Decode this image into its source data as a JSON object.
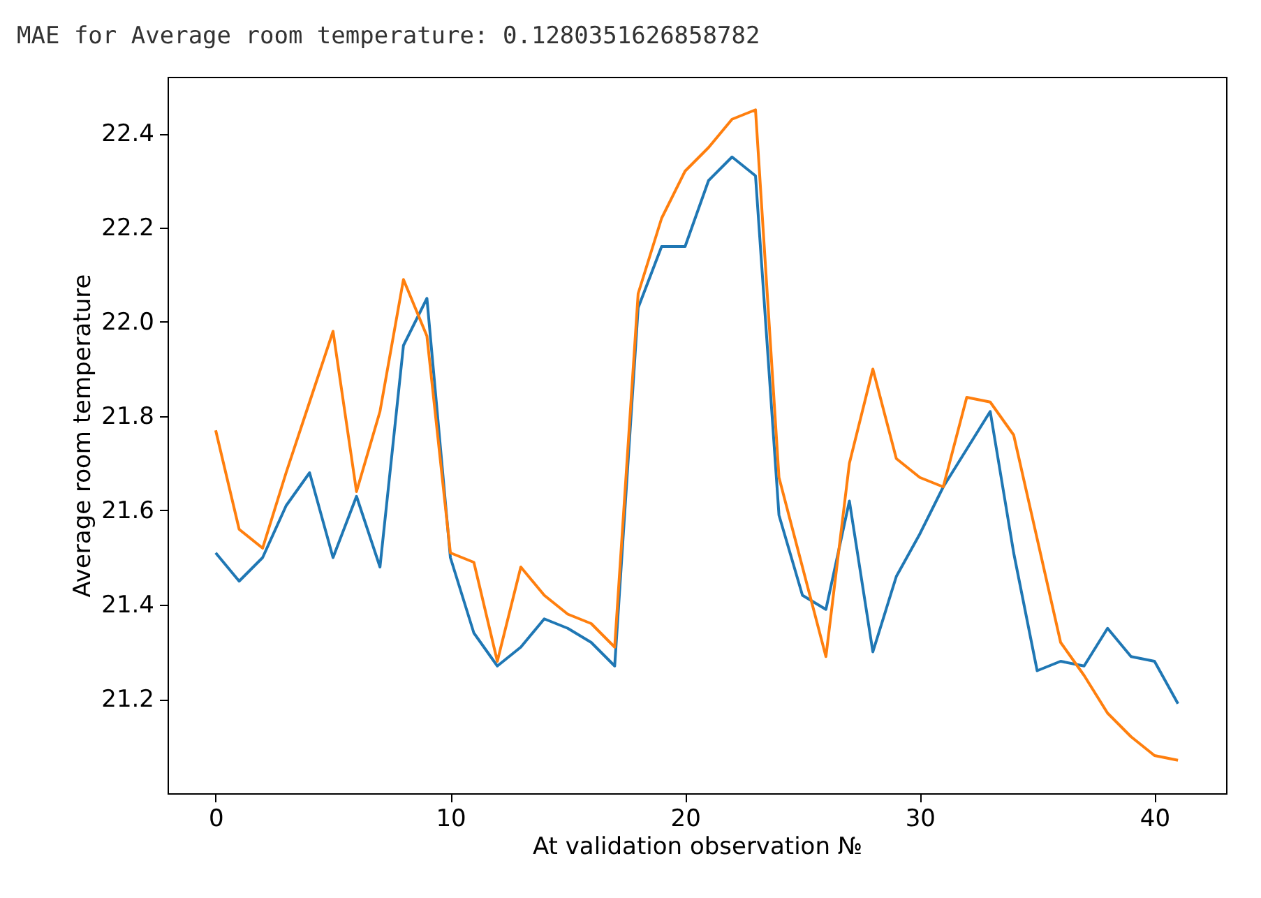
{
  "chart_data": {
    "type": "line",
    "title": "MAE for Average room temperature: 0.1280351626858782",
    "xlabel": "At validation observation №",
    "ylabel": "Average room temperature",
    "x": [
      0,
      1,
      2,
      3,
      4,
      5,
      6,
      7,
      8,
      9,
      10,
      11,
      12,
      13,
      14,
      15,
      16,
      17,
      18,
      19,
      20,
      21,
      22,
      23,
      24,
      25,
      26,
      27,
      28,
      29,
      30,
      31,
      32,
      33,
      34,
      35,
      36,
      37,
      38,
      39,
      40,
      41
    ],
    "series": [
      {
        "color": "#1f77b4",
        "values": [
          21.51,
          21.45,
          21.5,
          21.61,
          21.68,
          21.5,
          21.63,
          21.48,
          21.95,
          22.05,
          21.5,
          21.34,
          21.27,
          21.31,
          21.37,
          21.35,
          21.32,
          21.27,
          22.03,
          22.16,
          22.16,
          22.3,
          22.35,
          22.31,
          21.59,
          21.42,
          21.39,
          21.62,
          21.3,
          21.46,
          21.55,
          21.65,
          21.73,
          21.81,
          21.51,
          21.26,
          21.28,
          21.27,
          21.35,
          21.29,
          21.28,
          21.19
        ]
      },
      {
        "color": "#ff7f0e",
        "values": [
          21.77,
          21.56,
          21.52,
          21.68,
          21.83,
          21.98,
          21.64,
          21.81,
          22.09,
          21.97,
          21.51,
          21.49,
          21.28,
          21.48,
          21.42,
          21.38,
          21.36,
          21.31,
          22.06,
          22.22,
          22.32,
          22.37,
          22.43,
          22.45,
          21.67,
          21.48,
          21.29,
          21.7,
          21.9,
          21.71,
          21.67,
          21.65,
          21.84,
          21.83,
          21.76,
          21.54,
          21.32,
          21.25,
          21.17,
          21.12,
          21.08,
          21.07
        ]
      }
    ],
    "xlim": [
      -2.05,
      43.05
    ],
    "xticks": [
      0,
      10,
      20,
      30,
      40
    ],
    "ylim": [
      21.0,
      22.52
    ],
    "yticks": [
      21.2,
      21.4,
      21.6,
      21.8,
      {
        "value": 22,
        "label": "22.0"
      },
      22.2,
      22.4
    ],
    "grid": false
  }
}
